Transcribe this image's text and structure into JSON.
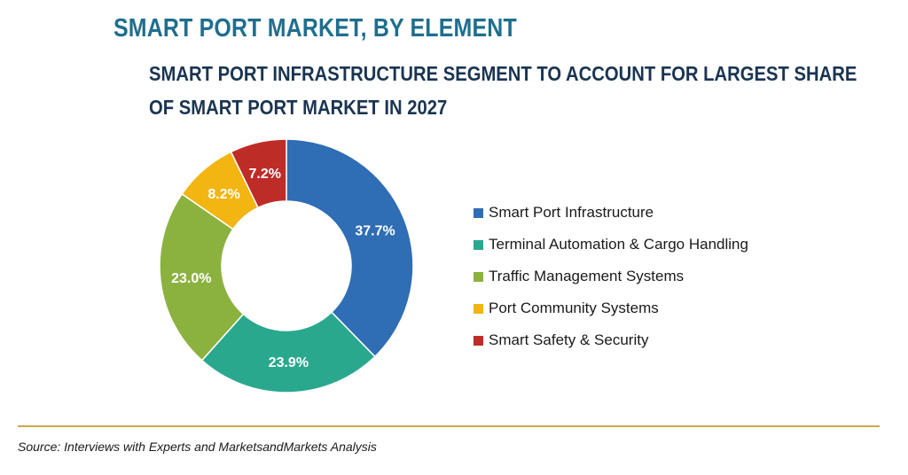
{
  "header": {
    "title": "SMART PORT MARKET, BY ELEMENT",
    "subtitle_line1": "SMART PORT INFRASTRUCTURE SEGMENT TO ACCOUNT FOR LARGEST SHARE",
    "subtitle_line2": "OF SMART PORT MARKET IN 2027"
  },
  "chart_data": {
    "type": "pie",
    "subtype": "donut",
    "title": "SMART PORT MARKET, BY ELEMENT",
    "subtitle": "SMART PORT INFRASTRUCTURE SEGMENT TO ACCOUNT FOR LARGEST SHARE OF SMART PORT MARKET IN 2027",
    "legend_position": "right",
    "unit": "%",
    "slices": [
      {
        "label": "Smart Port Infrastructure",
        "value": 37.7,
        "display": "37.7%",
        "color": "#2f6db5"
      },
      {
        "label": "Terminal Automation & Cargo Handling",
        "value": 23.9,
        "display": "23.9%",
        "color": "#2aa88e"
      },
      {
        "label": "Traffic Management Systems",
        "value": 23.0,
        "display": "23.0%",
        "color": "#8bb23f"
      },
      {
        "label": "Port Community Systems",
        "value": 8.2,
        "display": "8.2%",
        "color": "#f2b511"
      },
      {
        "label": "Smart Safety & Security",
        "value": 7.2,
        "display": "7.2%",
        "color": "#be2c27"
      }
    ]
  },
  "footer": {
    "source": "Source: Interviews with Experts and MarketsandMarkets Analysis"
  }
}
